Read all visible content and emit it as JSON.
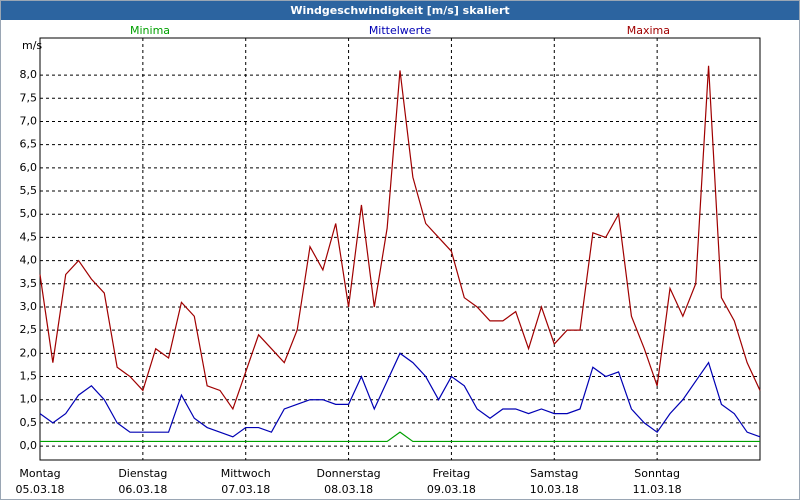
{
  "chart_data": {
    "type": "line",
    "title": "Windgeschwindigkeit [m/s] skaliert",
    "y_unit": "m/s",
    "x": [
      0,
      0.125,
      0.25,
      0.375,
      0.5,
      0.625,
      0.75,
      0.875,
      1,
      1.125,
      1.25,
      1.375,
      1.5,
      1.625,
      1.75,
      1.875,
      2,
      2.125,
      2.25,
      2.375,
      2.5,
      2.625,
      2.75,
      2.875,
      3,
      3.125,
      3.25,
      3.375,
      3.5,
      3.625,
      3.75,
      3.875,
      4,
      4.125,
      4.25,
      4.375,
      4.5,
      4.625,
      4.75,
      4.875,
      5,
      5.125,
      5.25,
      5.375,
      5.5,
      5.625,
      5.75,
      5.875,
      6,
      6.125,
      6.25,
      6.375,
      6.5,
      6.625,
      6.75,
      6.875,
      7
    ],
    "xlim": [
      0,
      7
    ],
    "xticks": [
      {
        "value": 0,
        "label": "Montag",
        "date": "05.03.18"
      },
      {
        "value": 1,
        "label": "Dienstag",
        "date": "06.03.18"
      },
      {
        "value": 2,
        "label": "Mittwoch",
        "date": "07.03.18"
      },
      {
        "value": 3,
        "label": "Donnerstag",
        "date": "08.03.18"
      },
      {
        "value": 4,
        "label": "Freitag",
        "date": "09.03.18"
      },
      {
        "value": 5,
        "label": "Samstag",
        "date": "10.03.18"
      },
      {
        "value": 6,
        "label": "Sonntag",
        "date": "11.03.18"
      }
    ],
    "ylim": [
      -0.3,
      8.8
    ],
    "yticks": [
      {
        "value": 0,
        "label": "0,0"
      },
      {
        "value": 0.5,
        "label": "0,5"
      },
      {
        "value": 1,
        "label": "1,0"
      },
      {
        "value": 1.5,
        "label": "1,5"
      },
      {
        "value": 2,
        "label": "2,0"
      },
      {
        "value": 2.5,
        "label": "2,5"
      },
      {
        "value": 3,
        "label": "3,0"
      },
      {
        "value": 3.5,
        "label": "3,5"
      },
      {
        "value": 4,
        "label": "4,0"
      },
      {
        "value": 4.5,
        "label": "4,5"
      },
      {
        "value": 5,
        "label": "5,0"
      },
      {
        "value": 5.5,
        "label": "5,5"
      },
      {
        "value": 6,
        "label": "6,0"
      },
      {
        "value": 6.5,
        "label": "6,5"
      },
      {
        "value": 7,
        "label": "7,0"
      },
      {
        "value": 7.5,
        "label": "7,5"
      },
      {
        "value": 8,
        "label": "8,0"
      }
    ],
    "grid": true,
    "series": [
      {
        "name": "Minima",
        "color": "#00a000",
        "values": [
          0.1,
          0.1,
          0.1,
          0.1,
          0.1,
          0.1,
          0.1,
          0.1,
          0.1,
          0.1,
          0.1,
          0.1,
          0.1,
          0.1,
          0.1,
          0.1,
          0.1,
          0.1,
          0.1,
          0.1,
          0.1,
          0.1,
          0.1,
          0.1,
          0.1,
          0.1,
          0.1,
          0.1,
          0.3,
          0.1,
          0.1,
          0.1,
          0.1,
          0.1,
          0.1,
          0.1,
          0.1,
          0.1,
          0.1,
          0.1,
          0.1,
          0.1,
          0.1,
          0.1,
          0.1,
          0.1,
          0.1,
          0.1,
          0.1,
          0.1,
          0.1,
          0.1,
          0.1,
          0.1,
          0.1,
          0.1,
          0.1
        ]
      },
      {
        "name": "Mittelwerte",
        "color": "#0000b4",
        "values": [
          0.7,
          0.5,
          0.7,
          1.1,
          1.3,
          1.0,
          0.5,
          0.3,
          0.3,
          0.3,
          0.3,
          1.1,
          0.6,
          0.4,
          0.3,
          0.2,
          0.4,
          0.4,
          0.3,
          0.8,
          0.9,
          1.0,
          1.0,
          0.9,
          0.9,
          1.5,
          0.8,
          1.4,
          2.0,
          1.8,
          1.5,
          1.0,
          1.5,
          1.3,
          0.8,
          0.6,
          0.8,
          0.8,
          0.7,
          0.8,
          0.7,
          0.7,
          0.8,
          1.7,
          1.5,
          1.6,
          0.8,
          0.5,
          0.3,
          0.7,
          1.0,
          1.4,
          1.8,
          0.9,
          0.7,
          0.3,
          0.2
        ]
      },
      {
        "name": "Maxima",
        "color": "#a00000",
        "values": [
          3.7,
          1.8,
          3.7,
          4.0,
          3.6,
          3.3,
          1.7,
          1.5,
          1.2,
          2.1,
          1.9,
          3.1,
          2.8,
          1.3,
          1.2,
          0.8,
          1.6,
          2.4,
          2.1,
          1.8,
          2.5,
          4.3,
          3.8,
          4.8,
          3.0,
          5.2,
          3.0,
          4.7,
          8.1,
          5.8,
          4.8,
          4.5,
          4.2,
          3.2,
          3.0,
          2.7,
          2.7,
          2.9,
          2.1,
          3.0,
          2.2,
          2.5,
          2.5,
          4.6,
          4.5,
          5.0,
          2.8,
          2.1,
          1.3,
          3.4,
          2.8,
          3.5,
          8.2,
          3.2,
          2.7,
          1.8,
          1.2
        ]
      }
    ]
  }
}
